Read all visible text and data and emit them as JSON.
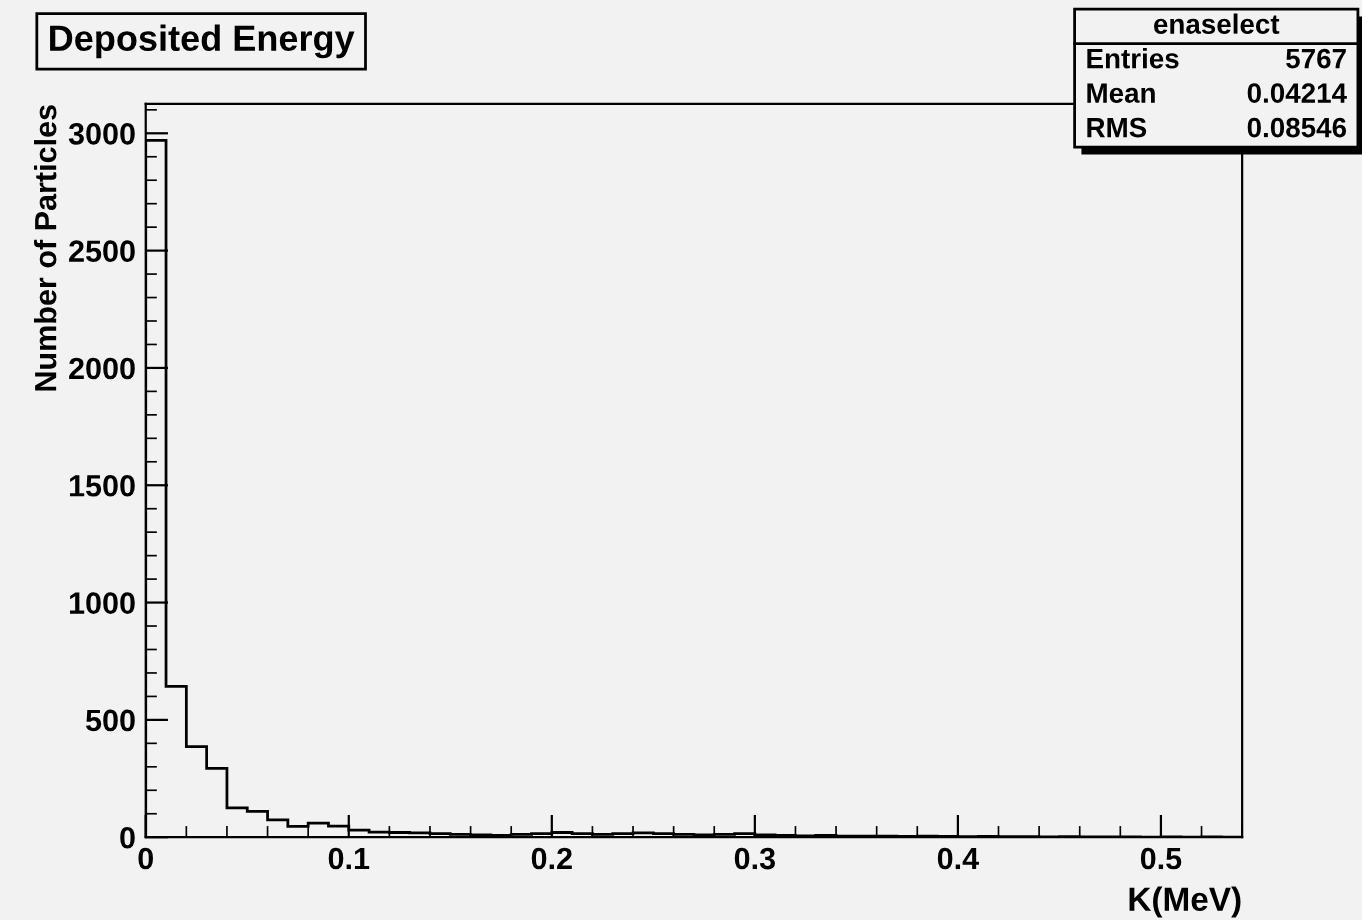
{
  "chart_data": {
    "type": "histogram",
    "title": "Deposited Energy",
    "xlabel": "K(MeV)",
    "ylabel": "Number of Particles",
    "bins": [
      0,
      0.01,
      0.02,
      0.03,
      0.04,
      0.05,
      0.06,
      0.07,
      0.08,
      0.09,
      0.1,
      0.11,
      0.12,
      0.13,
      0.14,
      0.15,
      0.16,
      0.17,
      0.18,
      0.19,
      0.2,
      0.21,
      0.22,
      0.23,
      0.24,
      0.25,
      0.26,
      0.27,
      0.28,
      0.29,
      0.3,
      0.31,
      0.32,
      0.33,
      0.34,
      0.35,
      0.36,
      0.37,
      0.38,
      0.39,
      0.4,
      0.41,
      0.42,
      0.43,
      0.44,
      0.45,
      0.46,
      0.47,
      0.48,
      0.49,
      0.5,
      0.51,
      0.52,
      0.53,
      0.54
    ],
    "values": [
      2970,
      643,
      386,
      293,
      125,
      110,
      74,
      46,
      60,
      47,
      30,
      22,
      20,
      18,
      15,
      12,
      10,
      8,
      12,
      15,
      20,
      15,
      12,
      15,
      18,
      15,
      12,
      10,
      12,
      15,
      10,
      8,
      6,
      8,
      5,
      4,
      5,
      3,
      4,
      3,
      2,
      3,
      2,
      2,
      1,
      2,
      1,
      1,
      1,
      0,
      1,
      0,
      1,
      0
    ],
    "color": "#000000",
    "xlim": [
      0,
      0.54
    ],
    "xticks": [
      0,
      0.1,
      0.2,
      0.3,
      0.4,
      0.5
    ],
    "ylim": [
      0,
      3125
    ],
    "yticks": [
      0,
      500,
      1000,
      1500,
      2000,
      2500,
      3000
    ],
    "grid": false,
    "legend": false,
    "annotations": [
      "enaselect",
      "Entries",
      "5767",
      "Mean",
      "0.04214",
      "RMS",
      "0.08546"
    ]
  }
}
